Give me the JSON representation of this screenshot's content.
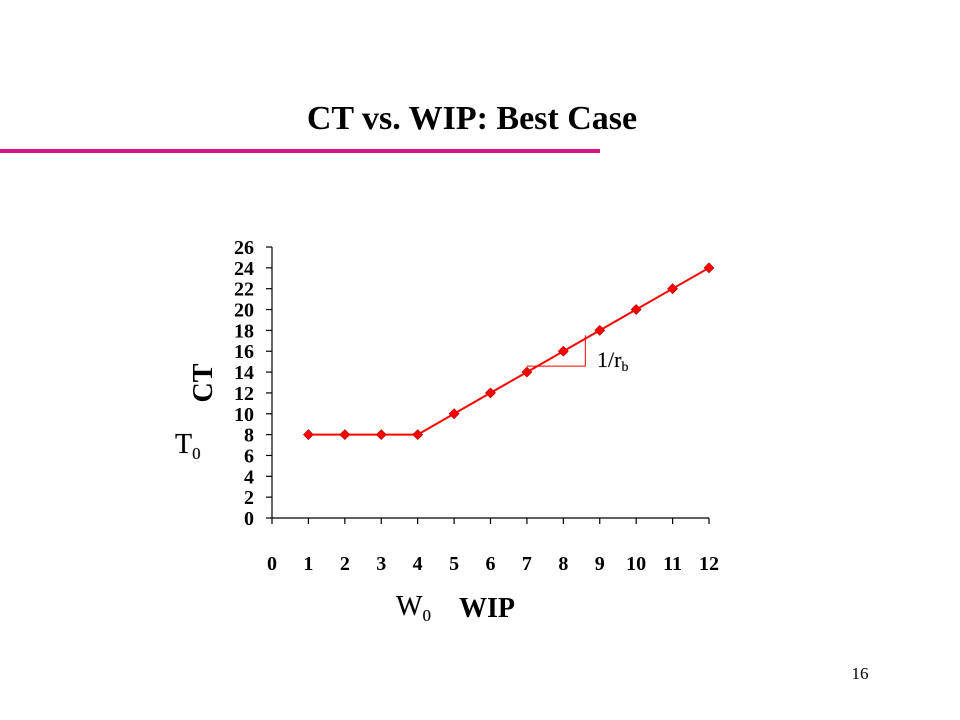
{
  "slide": {
    "title": "CT vs. WIP: Best Case",
    "page_number": "16",
    "accent_color": "#d4148a"
  },
  "chart_data": {
    "type": "line",
    "xlabel": "WIP",
    "ylabel": "CT",
    "x": [
      1,
      2,
      3,
      4,
      5,
      6,
      7,
      8,
      9,
      10,
      11,
      12
    ],
    "series": [
      {
        "values": [
          8,
          8,
          8,
          8,
          10,
          12,
          14,
          16,
          18,
          20,
          22,
          24
        ]
      }
    ],
    "xlim": [
      0,
      12
    ],
    "ylim": [
      0,
      26
    ],
    "xticks": [
      "0",
      "1",
      "2",
      "3",
      "4",
      "5",
      "6",
      "7",
      "8",
      "9",
      "10",
      "11",
      "12"
    ],
    "yticks": [
      "0",
      "2",
      "4",
      "6",
      "8",
      "10",
      "12",
      "14",
      "16",
      "18",
      "20",
      "22",
      "24",
      "26"
    ],
    "grid": false,
    "series_color": "#ff0000",
    "annotations": {
      "t0": {
        "main": "T",
        "sub": "0"
      },
      "w0": {
        "main": "W",
        "sub": "0"
      },
      "slope": {
        "main": "1/r",
        "sub": "b"
      }
    }
  }
}
